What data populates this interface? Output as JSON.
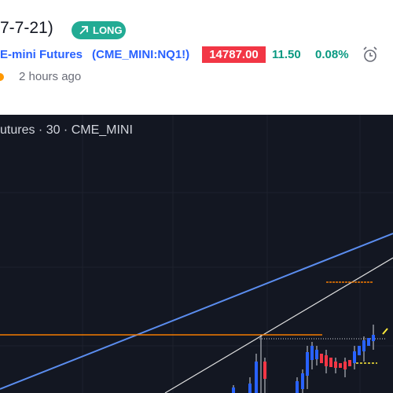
{
  "header": {
    "title": "7-7-21)",
    "badge": "LONG",
    "symbol_name": "E-mini Futures",
    "symbol_code": "(CME_MINI:NQ1!)",
    "price": "14787.00",
    "change": "11.50",
    "change_percent": "0.08%",
    "time": "2 hours ago"
  },
  "chart": {
    "legend": "utures · 30 · CME_MINI"
  }
}
